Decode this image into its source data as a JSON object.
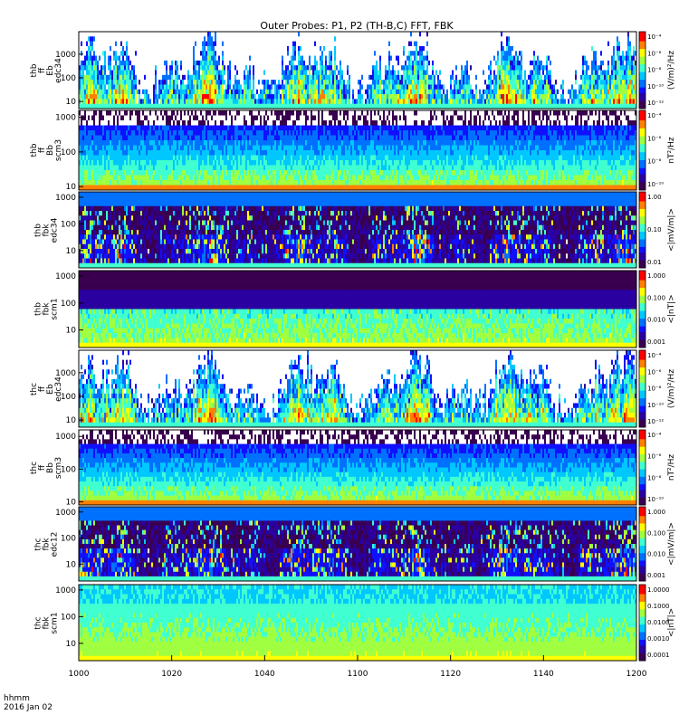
{
  "title": "Outer Probes: P1, P2 (TH-B,C) FFT, FBK",
  "footer": {
    "line1": "hhmm",
    "line2": "2016 Jan 02"
  },
  "x_axis": {
    "ticks": [
      "1000",
      "1020",
      "1040",
      "1100",
      "1120",
      "1140",
      "1200"
    ]
  },
  "colormap": [
    "#3a0050",
    "#2a00a0",
    "#1010ff",
    "#0070ff",
    "#00c8ff",
    "#40ffd0",
    "#a0ff40",
    "#ffff00",
    "#ff8000",
    "#ff0000"
  ],
  "chart_data": [
    {
      "type": "heatmap",
      "id": "p1",
      "ylabel": [
        "thb",
        "ff",
        "Eb",
        "edc34"
      ],
      "yticks": [
        "10",
        "100",
        "1000"
      ],
      "ylog_range": [
        0.7,
        3.95
      ],
      "colorbar_label": "(V/m)²/Hz",
      "colorbar_ticks": [
        "10⁻⁴",
        "10⁻⁶",
        "10⁻⁸",
        "10⁻¹⁰",
        "10⁻¹²"
      ],
      "style": "spiky"
    },
    {
      "type": "heatmap",
      "id": "p2",
      "ylabel": [
        "thb",
        "ff",
        "Bb",
        "scm3"
      ],
      "yticks": [
        "10",
        "100",
        "1000"
      ],
      "ylog_range": [
        0.9,
        3.2
      ],
      "colorbar_label": "nT²/Hz",
      "colorbar_ticks": [
        "10⁻⁴",
        "10⁻⁶",
        "10⁻⁸",
        "10⁻¹⁰"
      ],
      "style": "bands"
    },
    {
      "type": "heatmap",
      "id": "p3",
      "ylabel": [
        "thb",
        "fbk",
        "edc34"
      ],
      "yticks": [
        "10",
        "100",
        "1000"
      ],
      "ylog_range": [
        0.35,
        3.2
      ],
      "colorbar_label": "<|mV/m|>",
      "colorbar_ticks": [
        "1.00",
        "0.10",
        "0.01"
      ],
      "style": "fbk"
    },
    {
      "type": "heatmap",
      "id": "p4",
      "ylabel": [
        "thb",
        "fbk",
        "scm1"
      ],
      "yticks": [
        "10",
        "100",
        "1000"
      ],
      "ylog_range": [
        0.35,
        3.2
      ],
      "colorbar_label": "<|nT|>",
      "colorbar_ticks": [
        "1.000",
        "0.100",
        "0.010",
        "0.001"
      ],
      "style": "fbkscm"
    },
    {
      "type": "heatmap",
      "id": "p5",
      "ylabel": [
        "thc",
        "ff",
        "Eb",
        "edc34"
      ],
      "yticks": [
        "10",
        "100",
        "1000"
      ],
      "ylog_range": [
        0.7,
        3.95
      ],
      "colorbar_label": "(V/m)²/Hz",
      "colorbar_ticks": [
        "10⁻⁴",
        "10⁻⁶",
        "10⁻⁸",
        "10⁻¹⁰",
        "10⁻¹²"
      ],
      "style": "spiky2"
    },
    {
      "type": "heatmap",
      "id": "p6",
      "ylabel": [
        "thc",
        "ff",
        "Bb",
        "scm3"
      ],
      "yticks": [
        "10",
        "100",
        "1000"
      ],
      "ylog_range": [
        0.9,
        3.2
      ],
      "colorbar_label": "nT²/Hz",
      "colorbar_ticks": [
        "10⁻⁴",
        "10⁻⁶",
        "10⁻⁸",
        "10⁻¹⁰"
      ],
      "style": "bands"
    },
    {
      "type": "heatmap",
      "id": "p7",
      "ylabel": [
        "thc",
        "fbk",
        "edc12"
      ],
      "yticks": [
        "10",
        "100",
        "1000"
      ],
      "ylog_range": [
        0.35,
        3.2
      ],
      "colorbar_label": "<|mV/m|>",
      "colorbar_ticks": [
        "1.000",
        "0.100",
        "0.010",
        "0.001"
      ],
      "style": "fbk2"
    },
    {
      "type": "heatmap",
      "id": "p8",
      "ylabel": [
        "thc",
        "fbk",
        "scm1"
      ],
      "yticks": [
        "10",
        "100",
        "1000"
      ],
      "ylog_range": [
        0.35,
        3.2
      ],
      "colorbar_label": "<|nT|>",
      "colorbar_ticks": [
        "1.0000",
        "0.1000",
        "0.0100",
        "0.0010",
        "0.0001"
      ],
      "style": "fbkscm2"
    }
  ]
}
